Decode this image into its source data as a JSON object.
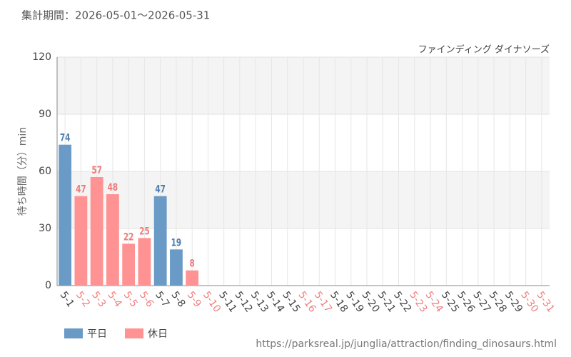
{
  "chart_data": {
    "type": "bar",
    "subtitle": "集計期間：2026-05-01～2026-05-31",
    "title": "ファインディング ダイナソーズ",
    "y_label": "待ち時間（分）min",
    "source": "https://parksreal.jp/junglia/attraction/finding_dinosaurs.html",
    "categories": [
      "5-1",
      "5-2",
      "5-3",
      "5-4",
      "5-5",
      "5-6",
      "5-7",
      "5-8",
      "5-9",
      "5-10",
      "5-11",
      "5-12",
      "5-13",
      "5-14",
      "5-15",
      "5-16",
      "5-17",
      "5-18",
      "5-19",
      "5-20",
      "5-21",
      "5-22",
      "5-23",
      "5-24",
      "5-25",
      "5-26",
      "5-27",
      "5-28",
      "5-29",
      "5-30",
      "5-31"
    ],
    "category_colors": [
      "#444444",
      "#f08080",
      "#f08080",
      "#f08080",
      "#f08080",
      "#f08080",
      "#444444",
      "#444444",
      "#f08080",
      "#f08080",
      "#444444",
      "#444444",
      "#444444",
      "#444444",
      "#444444",
      "#f08080",
      "#f08080",
      "#444444",
      "#444444",
      "#444444",
      "#444444",
      "#444444",
      "#f08080",
      "#f08080",
      "#444444",
      "#444444",
      "#444444",
      "#444444",
      "#444444",
      "#f08080",
      "#f08080"
    ],
    "series": [
      {
        "name": "平日",
        "color": "#6a9bc6",
        "label_color": "#4f7fae",
        "values": [
          74,
          null,
          null,
          null,
          null,
          null,
          47,
          19,
          null,
          null,
          null,
          null,
          null,
          null,
          null,
          null,
          null,
          null,
          null,
          null,
          null,
          null,
          null,
          null,
          null,
          null,
          null,
          null,
          null,
          null,
          null
        ]
      },
      {
        "name": "休日",
        "color": "#ff9393",
        "label_color": "#ef7b7b",
        "values": [
          null,
          47,
          57,
          48,
          22,
          25,
          null,
          null,
          8,
          null,
          null,
          null,
          null,
          null,
          null,
          null,
          null,
          null,
          null,
          null,
          null,
          null,
          null,
          null,
          null,
          null,
          null,
          null,
          null,
          null,
          null
        ]
      }
    ],
    "ylim": [
      0,
      120
    ],
    "yticks": [
      0,
      30,
      60,
      90,
      120
    ],
    "grid": true
  }
}
